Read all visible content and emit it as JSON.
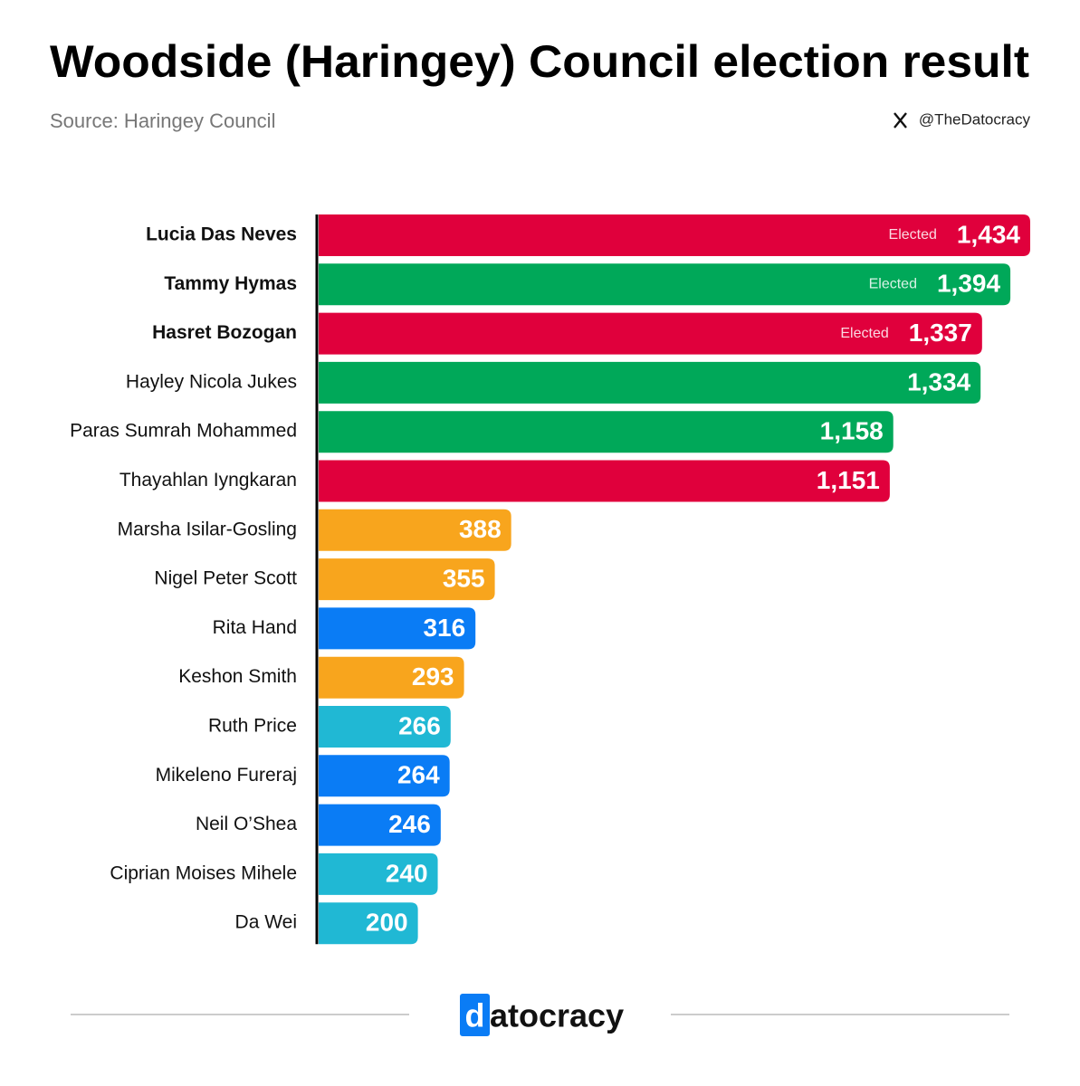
{
  "chart_data": {
    "type": "bar",
    "orientation": "horizontal",
    "title": "Woodside (Haringey) Council election result",
    "subtitle": "Source: Haringey Council",
    "handle": "@TheDatocracy",
    "brand": {
      "mark": "d",
      "rest": "atocracy"
    },
    "categories": [
      "Lucia Das Neves",
      "Tammy Hymas",
      "Hasret Bozogan",
      "Hayley Nicola Jukes",
      "Paras Sumrah Mohammed",
      "Thayahlan Iyngkaran",
      "Marsha Isilar-Gosling",
      "Nigel Peter Scott",
      "Rita Hand",
      "Keshon Smith",
      "Ruth Price",
      "Mikeleno Fureraj",
      "Neil O’Shea",
      "Ciprian Moises Mihele",
      "Da Wei"
    ],
    "values": [
      1434,
      1394,
      1337,
      1334,
      1158,
      1151,
      388,
      355,
      316,
      293,
      266,
      264,
      246,
      240,
      200
    ],
    "value_labels": [
      "1,434",
      "1,394",
      "1,337",
      "1,334",
      "1,158",
      "1,151",
      "388",
      "355",
      "316",
      "293",
      "266",
      "264",
      "246",
      "240",
      "200"
    ],
    "notes": [
      "Elected",
      "Elected",
      "Elected",
      null,
      null,
      null,
      null,
      null,
      null,
      null,
      null,
      null,
      null,
      null,
      null
    ],
    "colors": [
      "#e0003c",
      "#00a859",
      "#e0003c",
      "#00a859",
      "#00a859",
      "#e0003c",
      "#f8a51d",
      "#f8a51d",
      "#0a7cf5",
      "#f8a51d",
      "#20b8d4",
      "#0a7cf5",
      "#0a7cf5",
      "#20b8d4",
      "#20b8d4"
    ],
    "xlim": [
      0,
      1434
    ]
  }
}
